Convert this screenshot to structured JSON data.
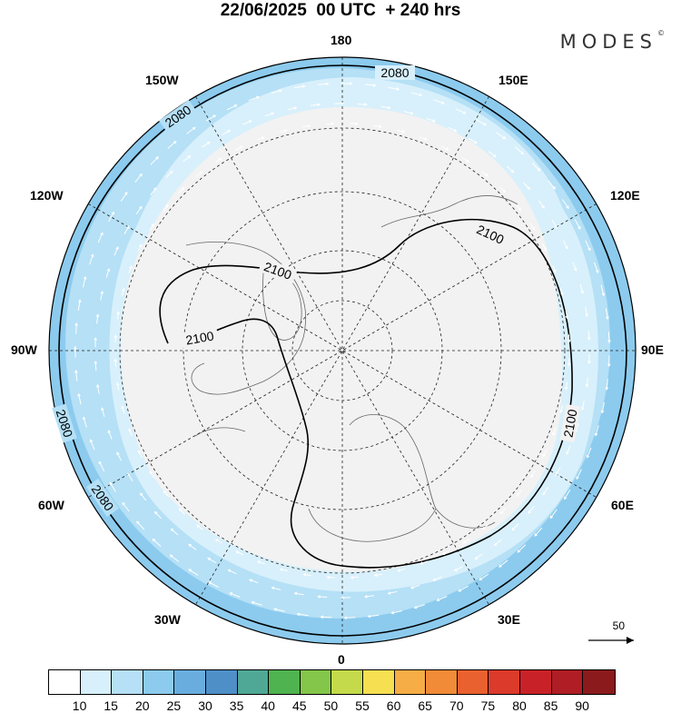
{
  "title": "22/06/2025  00 UTC  + 240 hrs",
  "brand": {
    "name": "MODES",
    "mark": "©"
  },
  "longitude_labels": {
    "top": "180",
    "bottom": "0",
    "left": "90W",
    "right": "90E",
    "nw1": "150W",
    "nw2": "120W",
    "ne1": "150E",
    "ne2": "120E",
    "sw1": "60W",
    "sw2": "30W",
    "se1": "60E",
    "se2": "30E"
  },
  "contours": {
    "outer": "2080",
    "inner": "2100"
  },
  "reference_vector": {
    "value": "50"
  },
  "legend": {
    "colors": [
      "#ffffff",
      "#d8f0fb",
      "#b5e0f6",
      "#8ccbee",
      "#69addf",
      "#4f8fc8",
      "#4fa895",
      "#4fb34f",
      "#83c649",
      "#c4da4a",
      "#f7df52",
      "#f6ad45",
      "#f18b38",
      "#ea6130",
      "#dc3a2b",
      "#c82228",
      "#b01d24",
      "#8b1a1c"
    ],
    "labels": [
      "10",
      "15",
      "20",
      "25",
      "30",
      "35",
      "40",
      "45",
      "50",
      "55",
      "60",
      "65",
      "70",
      "75",
      "80",
      "85",
      "90"
    ]
  },
  "colors": {
    "shade1": "#d8f0fb",
    "shade2": "#b5e0f6",
    "shade3": "#8ccbee",
    "land": "#f2f2f2"
  }
}
